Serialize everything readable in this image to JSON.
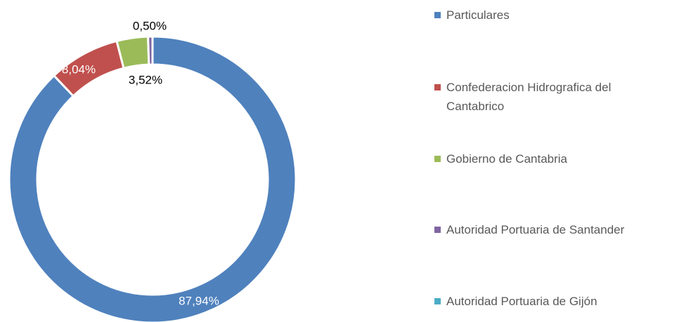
{
  "chart_data": {
    "type": "donut",
    "categories": [
      "Particulares",
      "Confederacion Hidrografica del Cantabrico",
      "Gobierno de Cantabria",
      "Autoridad Portuaria de Santander",
      "Autoridad Portuaria de Gijón"
    ],
    "values": [
      87.94,
      8.04,
      3.52,
      0.5,
      0
    ],
    "value_labels": [
      "87,94%",
      "8,04%",
      "3,52%",
      "0,50%",
      null
    ],
    "colors": [
      "#4f81bd",
      "#c0504d",
      "#9bbb59",
      "#8064a2",
      "#4bacc6"
    ],
    "legend": "right"
  }
}
